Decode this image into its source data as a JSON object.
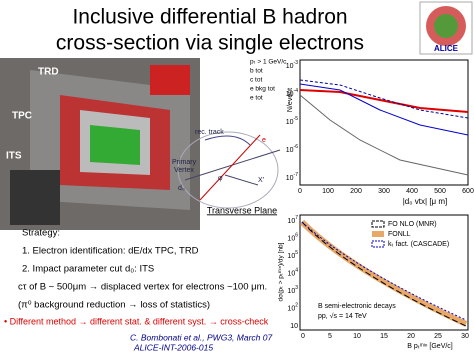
{
  "header": {
    "title_lines": [
      "Inclusive differential B hadron",
      "cross-section via single electrons"
    ]
  },
  "detector": {
    "labels": [
      "TRD",
      "TPC",
      "ITS"
    ]
  },
  "impact_plot": {
    "legend": [
      "pₜ > 1 GeV/c",
      "b tot",
      "c tot",
      "e bkg tot",
      "e tot"
    ],
    "y_label": "N/event",
    "y_ticks": [
      {
        "base": "10",
        "exp": "-3"
      },
      {
        "base": "10",
        "exp": "-4"
      },
      {
        "base": "10",
        "exp": "-5"
      },
      {
        "base": "10",
        "exp": "-6"
      },
      {
        "base": "10",
        "exp": "-7"
      }
    ],
    "x_ticks": [
      "0",
      "100",
      "200",
      "300",
      "400",
      "500",
      "600"
    ],
    "x_label": "|d₀ vtx| [μ m]"
  },
  "diagram": {
    "labels": [
      "rec. track",
      "Primary",
      "Vertex",
      "d₀",
      "e",
      "X'",
      "φ"
    ],
    "caption": "Transverse Plane"
  },
  "xsec_plot": {
    "legend": [
      "FO NLO (MNR)",
      "FONLL",
      "kₜ fact. (CASCADE)"
    ],
    "notes": [
      "B semi-electronic decays",
      "pp, √s = 14 TeV"
    ],
    "y_label": "dσ(pₜ > pₜᵐᶦⁿ)/dy [nb]",
    "y_ticks": [
      {
        "base": "10",
        "exp": "7"
      },
      {
        "base": "10",
        "exp": "6"
      },
      {
        "base": "10",
        "exp": "5"
      },
      {
        "base": "10",
        "exp": "4"
      },
      {
        "base": "10",
        "exp": "3"
      },
      {
        "base": "10",
        "exp": "2"
      },
      {
        "base": "10",
        "exp": ""
      }
    ],
    "x_ticks": [
      "0",
      "5",
      "10",
      "15",
      "20",
      "25",
      "30"
    ],
    "x_label": "B pₜᵐᶦⁿ [GeV/c]"
  },
  "body": {
    "lines": [
      "Strategy:",
      "1.    Electron identification: dE/dx TPC, TRD",
      "2.    Impact parameter cut d₀:  ITS",
      "cτ of B ~ 500μm → displaced vertex for electrons ~100 μm.",
      "(π⁰ background reduction → loss of statistics)"
    ],
    "bullet": "• Different method → different stat. & different syst. → cross-check"
  },
  "footer": {
    "lines": [
      "C. Bombonati et al., PWG3, March 07",
      "ALICE-INT-2006-015"
    ]
  }
}
